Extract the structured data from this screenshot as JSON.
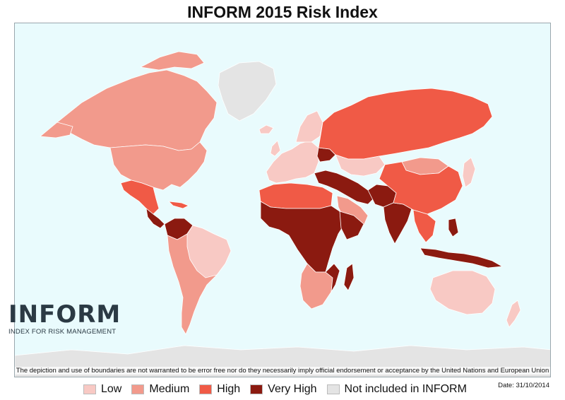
{
  "title": "INFORM 2015 Risk Index",
  "logo": {
    "word": "INFORM",
    "subtitle": "INDEX FOR RISK MANAGEMENT"
  },
  "disclaimer": "The depiction and use of boundaries are not warranted to be error free nor do they necessarily imply official endorsement or acceptance by the United Nations and European Union",
  "date": "Date: 31/10/2014",
  "legend": [
    {
      "label": "Low",
      "color": "#f8c9c4"
    },
    {
      "label": "Medium",
      "color": "#f29a8c"
    },
    {
      "label": "High",
      "color": "#f05a46"
    },
    {
      "label": "Very High",
      "color": "#8b1a10"
    },
    {
      "label": "Not included in INFORM",
      "color": "#e4e4e4"
    }
  ],
  "colors": {
    "ocean": "#e9fbfd",
    "border": "#ffffff"
  }
}
